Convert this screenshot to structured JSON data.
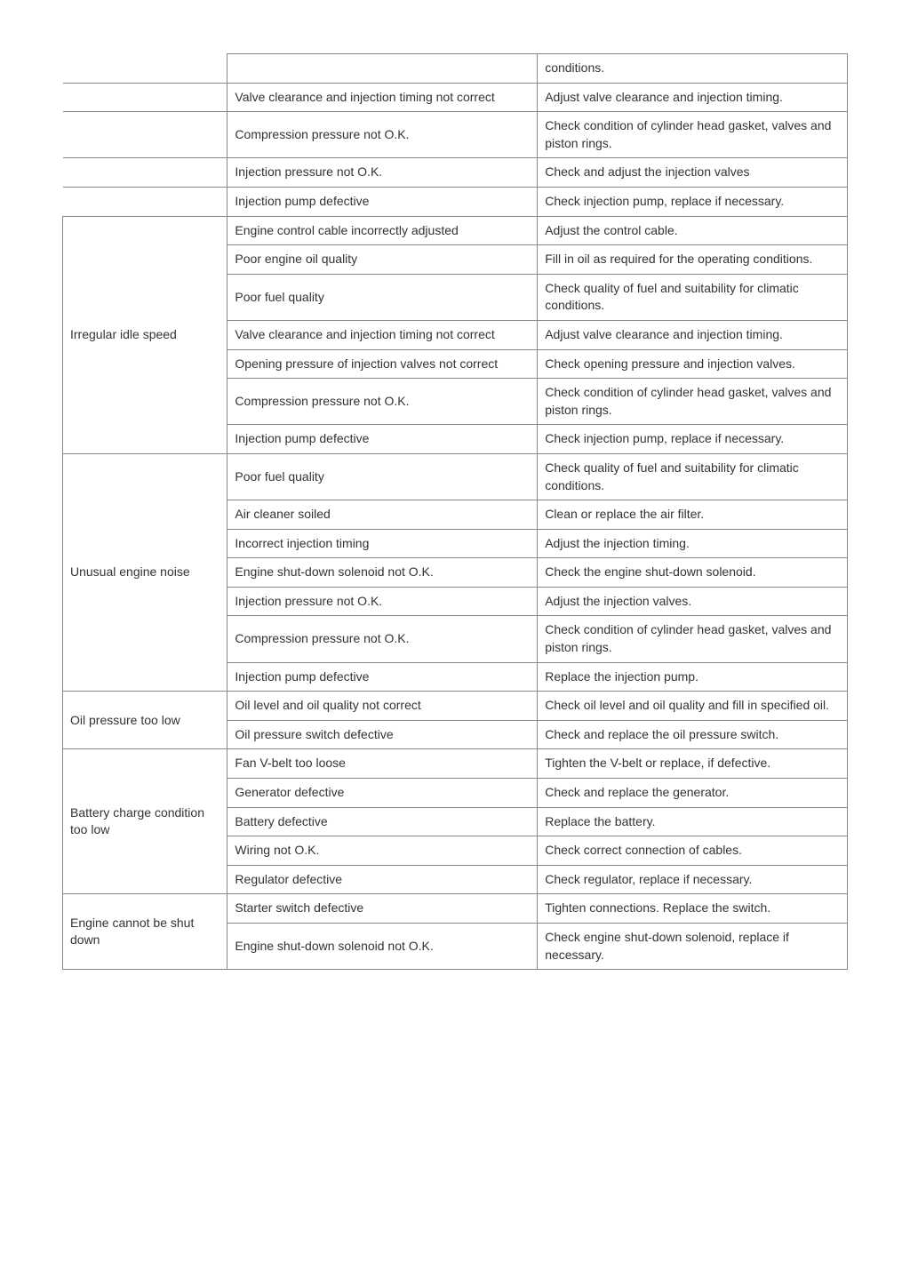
{
  "rows": [
    {
      "fault": "",
      "cause": "",
      "remedy": "conditions.",
      "faultSpan": 1,
      "classes": "noleft notop"
    },
    {
      "fault": "",
      "cause": "Valve clearance and injection timing not correct",
      "remedy": "Adjust valve clearance and injection timing.",
      "faultSpan": 1,
      "classes": "noleft notop"
    },
    {
      "fault": "",
      "cause": "Compression pressure not O.K.",
      "remedy": "Check condition of cylinder head gasket, valves and piston rings.",
      "faultSpan": 1,
      "classes": "noleft notop"
    },
    {
      "fault": "",
      "cause": "Injection pressure not O.K.",
      "remedy": "Check and adjust the injection valves",
      "faultSpan": 1,
      "classes": "noleft notop"
    },
    {
      "fault": "",
      "cause": "Injection pump defective",
      "remedy": "Check injection pump, replace if necessary.",
      "faultSpan": 1,
      "classes": "noleft notop"
    },
    {
      "fault": "Irregular idle speed",
      "cause": "Engine control cable incorrectly adjusted",
      "remedy": "Adjust the control cable.",
      "faultSpan": 7,
      "classes": ""
    },
    {
      "cause": "Poor engine oil quality",
      "remedy": "Fill in oil as required for the operating conditions."
    },
    {
      "cause": "Poor fuel quality",
      "remedy": "Check quality of fuel and suitability for climatic conditions."
    },
    {
      "cause": "Valve clearance and injection timing not correct",
      "remedy": "Adjust valve clearance and injection timing."
    },
    {
      "cause": "Opening pressure of injection valves not correct",
      "remedy": "Check opening pressure and injection valves."
    },
    {
      "cause": "Compression pressure not O.K.",
      "remedy": "Check condition of cylinder head gasket, valves and piston rings."
    },
    {
      "cause": "Injection pump defective",
      "remedy": "Check injection pump, replace if necessary."
    },
    {
      "fault": "Unusual engine noise",
      "cause": "Poor fuel quality",
      "remedy": "Check quality of fuel and suitability for climatic conditions.",
      "faultSpan": 7,
      "classes": ""
    },
    {
      "cause": "Air cleaner soiled",
      "remedy": "Clean or replace the air filter."
    },
    {
      "cause": "Incorrect injection timing",
      "remedy": "Adjust the injection timing."
    },
    {
      "cause": "Engine shut-down solenoid not O.K.",
      "remedy": "Check the engine shut-down solenoid."
    },
    {
      "cause": "Injection pressure not O.K.",
      "remedy": "Adjust the injection valves."
    },
    {
      "cause": "Compression pressure not O.K.",
      "remedy": "Check condition of cylinder head gasket, valves and piston rings."
    },
    {
      "cause": "Injection pump defective",
      "remedy": "Replace the injection pump."
    },
    {
      "fault": "Oil pressure too low",
      "cause": "Oil level and oil quality not correct",
      "remedy": "Check oil level and oil quality and fill in specified oil.",
      "faultSpan": 2,
      "classes": ""
    },
    {
      "cause": "Oil pressure switch defective",
      "remedy": "Check and replace the oil pressure switch."
    },
    {
      "fault": "Battery charge condition too low",
      "cause": "Fan V-belt too loose",
      "remedy": "Tighten the V-belt or replace, if defective.",
      "faultSpan": 5,
      "classes": ""
    },
    {
      "cause": "Generator defective",
      "remedy": "Check and replace the generator."
    },
    {
      "cause": "Battery defective",
      "remedy": "Replace the battery."
    },
    {
      "cause": "Wiring not O.K.",
      "remedy": "Check correct connection of cables."
    },
    {
      "cause": "Regulator defective",
      "remedy": "Check regulator, replace if necessary."
    },
    {
      "fault": "Engine cannot be shut down",
      "cause": "Starter switch defective",
      "remedy": "Tighten connections. Replace the switch.",
      "faultSpan": 2,
      "classes": ""
    },
    {
      "cause": "Engine shut-down solenoid not O.K.",
      "remedy": "Check engine shut-down solenoid, replace if necessary."
    }
  ]
}
